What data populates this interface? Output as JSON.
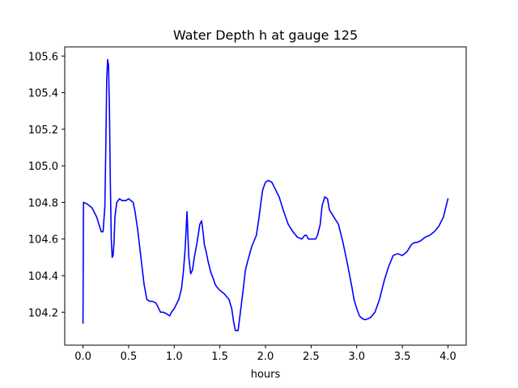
{
  "chart_data": {
    "type": "line",
    "title": "Water Depth h at gauge 125",
    "xlabel": "hours",
    "ylabel": "",
    "xlim": [
      -0.2,
      4.2
    ],
    "ylim": [
      104.02,
      105.65
    ],
    "xticks": [
      0.0,
      0.5,
      1.0,
      1.5,
      2.0,
      2.5,
      3.0,
      3.5,
      4.0
    ],
    "xtick_labels": [
      "0.0",
      "0.5",
      "1.0",
      "1.5",
      "2.0",
      "2.5",
      "3.0",
      "3.5",
      "4.0"
    ],
    "yticks": [
      104.2,
      104.4,
      104.6,
      104.8,
      105.0,
      105.2,
      105.4,
      105.6
    ],
    "ytick_labels": [
      "104.2",
      "104.4",
      "104.6",
      "104.8",
      "105.0",
      "105.2",
      "105.4",
      "105.6"
    ],
    "grid": false,
    "series": [
      {
        "color": "#0000ff",
        "x": [
          0.0,
          0.0,
          0.005,
          0.01,
          0.05,
          0.1,
          0.15,
          0.2,
          0.22,
          0.24,
          0.25,
          0.26,
          0.27,
          0.28,
          0.29,
          0.3,
          0.31,
          0.32,
          0.33,
          0.34,
          0.35,
          0.37,
          0.4,
          0.43,
          0.47,
          0.5,
          0.55,
          0.57,
          0.6,
          0.63,
          0.67,
          0.7,
          0.73,
          0.76,
          0.8,
          0.85,
          0.88,
          0.92,
          0.95,
          0.97,
          1.0,
          1.05,
          1.08,
          1.1,
          1.12,
          1.13,
          1.14,
          1.15,
          1.16,
          1.18,
          1.2,
          1.22,
          1.25,
          1.28,
          1.3,
          1.32,
          1.33,
          1.35,
          1.37,
          1.4,
          1.43,
          1.45,
          1.48,
          1.5,
          1.55,
          1.6,
          1.63,
          1.65,
          1.67,
          1.7,
          1.72,
          1.75,
          1.78,
          1.8,
          1.85,
          1.9,
          1.93,
          1.95,
          1.97,
          2.0,
          2.03,
          2.07,
          2.1,
          2.15,
          2.2,
          2.25,
          2.3,
          2.35,
          2.4,
          2.43,
          2.45,
          2.47,
          2.5,
          2.55,
          2.57,
          2.6,
          2.62,
          2.65,
          2.68,
          2.7,
          2.75,
          2.8,
          2.85,
          2.9,
          2.95,
          2.97,
          3.0,
          3.03,
          3.05,
          3.08,
          3.1,
          3.15,
          3.2,
          3.25,
          3.3,
          3.35,
          3.4,
          3.45,
          3.5,
          3.55,
          3.6,
          3.63,
          3.65,
          3.7,
          3.75,
          3.8,
          3.85,
          3.9,
          3.95,
          4.0
        ],
        "y": [
          104.22,
          104.14,
          104.8,
          104.8,
          104.79,
          104.77,
          104.72,
          104.64,
          104.64,
          104.78,
          105.1,
          105.47,
          105.58,
          105.55,
          105.3,
          104.9,
          104.6,
          104.5,
          104.51,
          104.58,
          104.72,
          104.8,
          104.82,
          104.81,
          104.81,
          104.82,
          104.8,
          104.75,
          104.65,
          104.52,
          104.35,
          104.27,
          104.26,
          104.26,
          104.25,
          104.2,
          104.2,
          104.19,
          104.18,
          104.2,
          104.22,
          104.27,
          104.33,
          104.42,
          104.55,
          104.65,
          104.75,
          104.62,
          104.5,
          104.41,
          104.43,
          104.5,
          104.58,
          104.68,
          104.7,
          104.62,
          104.57,
          104.53,
          104.48,
          104.42,
          104.38,
          104.35,
          104.33,
          104.32,
          104.3,
          104.27,
          104.22,
          104.15,
          104.1,
          104.1,
          104.18,
          104.3,
          104.43,
          104.47,
          104.56,
          104.62,
          104.72,
          104.8,
          104.87,
          104.91,
          104.92,
          104.91,
          104.88,
          104.83,
          104.75,
          104.68,
          104.64,
          104.61,
          104.6,
          104.62,
          104.62,
          104.6,
          104.6,
          104.6,
          104.62,
          104.68,
          104.78,
          104.83,
          104.82,
          104.76,
          104.72,
          104.68,
          104.58,
          104.46,
          104.33,
          104.27,
          104.22,
          104.18,
          104.17,
          104.16,
          104.16,
          104.17,
          104.2,
          104.27,
          104.37,
          104.45,
          104.51,
          104.52,
          104.51,
          104.53,
          104.57,
          104.58,
          104.58,
          104.59,
          104.61,
          104.62,
          104.64,
          104.67,
          104.72,
          104.82
        ]
      }
    ]
  }
}
